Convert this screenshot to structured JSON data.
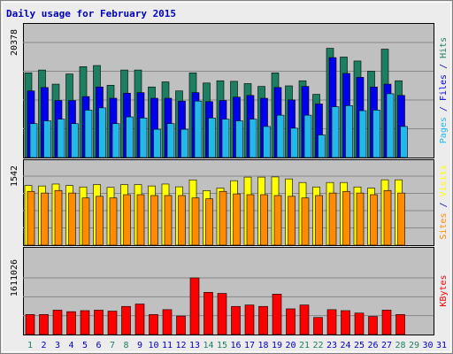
{
  "colors": {
    "frame_outer": "#ececec",
    "frame_border": "#808080",
    "panel_bg": "#c0c0c0",
    "grid": "#888888",
    "title": "#0000c0",
    "hits": "#1c7f61",
    "files": "#0000ee",
    "pages": "#22b8e8",
    "visits": "#ffff00",
    "sites": "#ff8c00",
    "kbytes": "#ff0000",
    "day_weekday": "#0000c0",
    "day_weekend": "#1c7f61"
  },
  "chart_data": {
    "type": "bar",
    "title": "Daily usage for February 2015",
    "days": [
      "1",
      "2",
      "3",
      "4",
      "5",
      "6",
      "7",
      "8",
      "9",
      "10",
      "11",
      "12",
      "13",
      "14",
      "15",
      "16",
      "17",
      "18",
      "19",
      "20",
      "21",
      "22",
      "23",
      "24",
      "25",
      "26",
      "27",
      "28",
      "29",
      "30",
      "31"
    ],
    "weekend_days": [
      "1",
      "7",
      "8",
      "14",
      "15",
      "21",
      "22",
      "28",
      "29"
    ],
    "panels": [
      {
        "name": "hits-files-pages",
        "ymax": 20378,
        "max_label": "20378",
        "legend": [
          {
            "text": "Pages",
            "color_key": "pages"
          },
          {
            "text": " / ",
            "color_key": "title"
          },
          {
            "text": "Files",
            "color_key": "files"
          },
          {
            "text": " / ",
            "color_key": "title"
          },
          {
            "text": "Hits",
            "color_key": "hits"
          }
        ],
        "series": [
          {
            "name": "Hits",
            "color_key": "hits",
            "values": [
              15000,
              15500,
              13000,
              14800,
              16100,
              16300,
              12800,
              15500,
              15500,
              12500,
              13400,
              11800,
              15000,
              13200,
              13600,
              13500,
              13100,
              12600,
              15000,
              12700,
              13600,
              11200,
              19350,
              17800,
              17100,
              15300,
              19200,
              13600,
              null,
              null,
              null
            ]
          },
          {
            "name": "Files",
            "color_key": "files",
            "values": [
              11800,
              12400,
              10100,
              10100,
              10800,
              12500,
              10500,
              11400,
              11500,
              10500,
              10500,
              10000,
              11500,
              9900,
              10100,
              10700,
              11000,
              10500,
              12400,
              10200,
              12600,
              9500,
              17700,
              14900,
              14200,
              12500,
              13000,
              11000,
              null,
              null,
              null
            ]
          },
          {
            "name": "Pages",
            "color_key": "pages",
            "values": [
              6000,
              6500,
              6800,
              6000,
              8400,
              8800,
              6000,
              7200,
              7000,
              5000,
              6000,
              5000,
              10000,
              7000,
              6800,
              6500,
              6800,
              5500,
              7500,
              5200,
              7500,
              4000,
              9000,
              9200,
              8300,
              8400,
              11300,
              5500,
              null,
              null,
              null
            ]
          }
        ]
      },
      {
        "name": "visits-sites",
        "ymax": 1542,
        "max_label": "1542",
        "legend": [
          {
            "text": "Sites",
            "color_key": "sites"
          },
          {
            "text": " / ",
            "color_key": "title"
          },
          {
            "text": "Visits",
            "color_key": "visits"
          }
        ],
        "series": [
          {
            "name": "Visits",
            "color_key": "visits",
            "values": [
              1332,
              1322,
              1365,
              1332,
              1300,
              1354,
              1290,
              1354,
              1354,
              1322,
              1365,
              1303,
              1458,
              1219,
              1277,
              1440,
              1520,
              1520,
              1524,
              1480,
              1400,
              1300,
              1400,
              1400,
              1300,
              1275,
              1460,
              1460,
              null,
              null,
              null
            ]
          },
          {
            "name": "Sites",
            "color_key": "sites",
            "values": [
              1201,
              1164,
              1221,
              1164,
              1054,
              1091,
              1054,
              1127,
              1127,
              1108,
              1108,
              1108,
              1054,
              1035,
              1201,
              1145,
              1127,
              1127,
              1108,
              1091,
              1054,
              1108,
              1164,
              1201,
              1164,
              1127,
              1221,
              1164,
              null,
              null,
              null
            ]
          }
        ]
      },
      {
        "name": "kbytes",
        "ymax": 1611026,
        "max_label": "1611026",
        "legend": [
          {
            "text": "KBytes",
            "color_key": "kbytes"
          }
        ],
        "series": [
          {
            "name": "KBytes",
            "color_key": "kbytes",
            "values": [
              569000,
              569000,
              694000,
              651000,
              680000,
              694000,
              666000,
              800000,
              868000,
              569000,
              708000,
              527000,
              1611000,
              1200000,
              1170000,
              800000,
              841000,
              800000,
              1150000,
              731000,
              841000,
              485000,
              708000,
              680000,
              611000,
              514000,
              694000,
              569000,
              null,
              null,
              null
            ]
          }
        ]
      }
    ]
  }
}
